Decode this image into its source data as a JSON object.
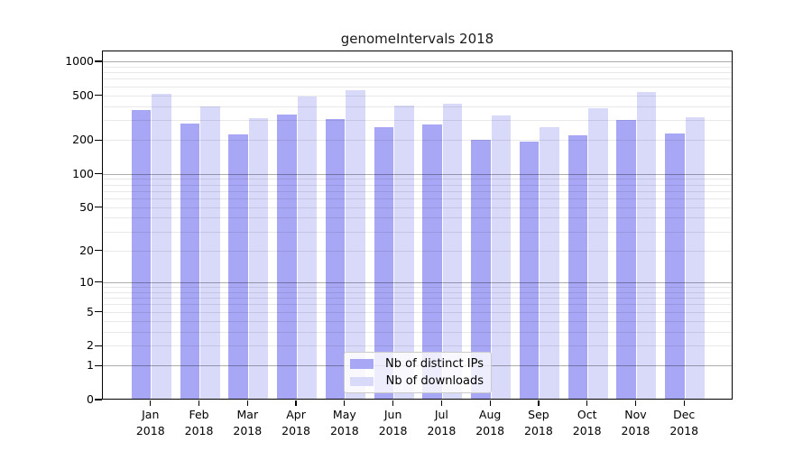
{
  "title": "genomeIntervals 2018",
  "legend": {
    "items": [
      {
        "label": "Nb of distinct IPs",
        "color": "#a7a7f5"
      },
      {
        "label": "Nb of downloads",
        "color": "#d9d9fa"
      }
    ]
  },
  "axes": {
    "y_tick_labels": [
      1000,
      500,
      200,
      100,
      50,
      20,
      10,
      5,
      2,
      1,
      0
    ],
    "x_year": "2018"
  },
  "chart_data": {
    "type": "bar",
    "title": "genomeIntervals 2018",
    "categories": [
      "Jan 2018",
      "Feb 2018",
      "Mar 2018",
      "Apr 2018",
      "May 2018",
      "Jun 2018",
      "Jul 2018",
      "Aug 2018",
      "Sep 2018",
      "Oct 2018",
      "Nov 2018",
      "Dec 2018"
    ],
    "series": [
      {
        "name": "Nb of distinct IPs",
        "color": "#a7a7f5",
        "values": [
          370,
          280,
          225,
          335,
          310,
          260,
          275,
          200,
          195,
          220,
          300,
          230
        ]
      },
      {
        "name": "Nb of downloads",
        "color": "#d9d9fa",
        "values": [
          520,
          395,
          315,
          490,
          560,
          405,
          420,
          330,
          260,
          385,
          540,
          320
        ]
      }
    ],
    "xlabel": "",
    "ylabel": "",
    "yscale": "log1p",
    "ylim": [
      0,
      1250
    ],
    "yticks": [
      0,
      1,
      2,
      5,
      10,
      20,
      50,
      100,
      200,
      500,
      1000
    ],
    "grid": {
      "major_at": [
        1,
        10,
        100,
        1000
      ],
      "minor": "multiples 2-9 of each decade"
    },
    "legend_position": "lower center inside plot"
  }
}
